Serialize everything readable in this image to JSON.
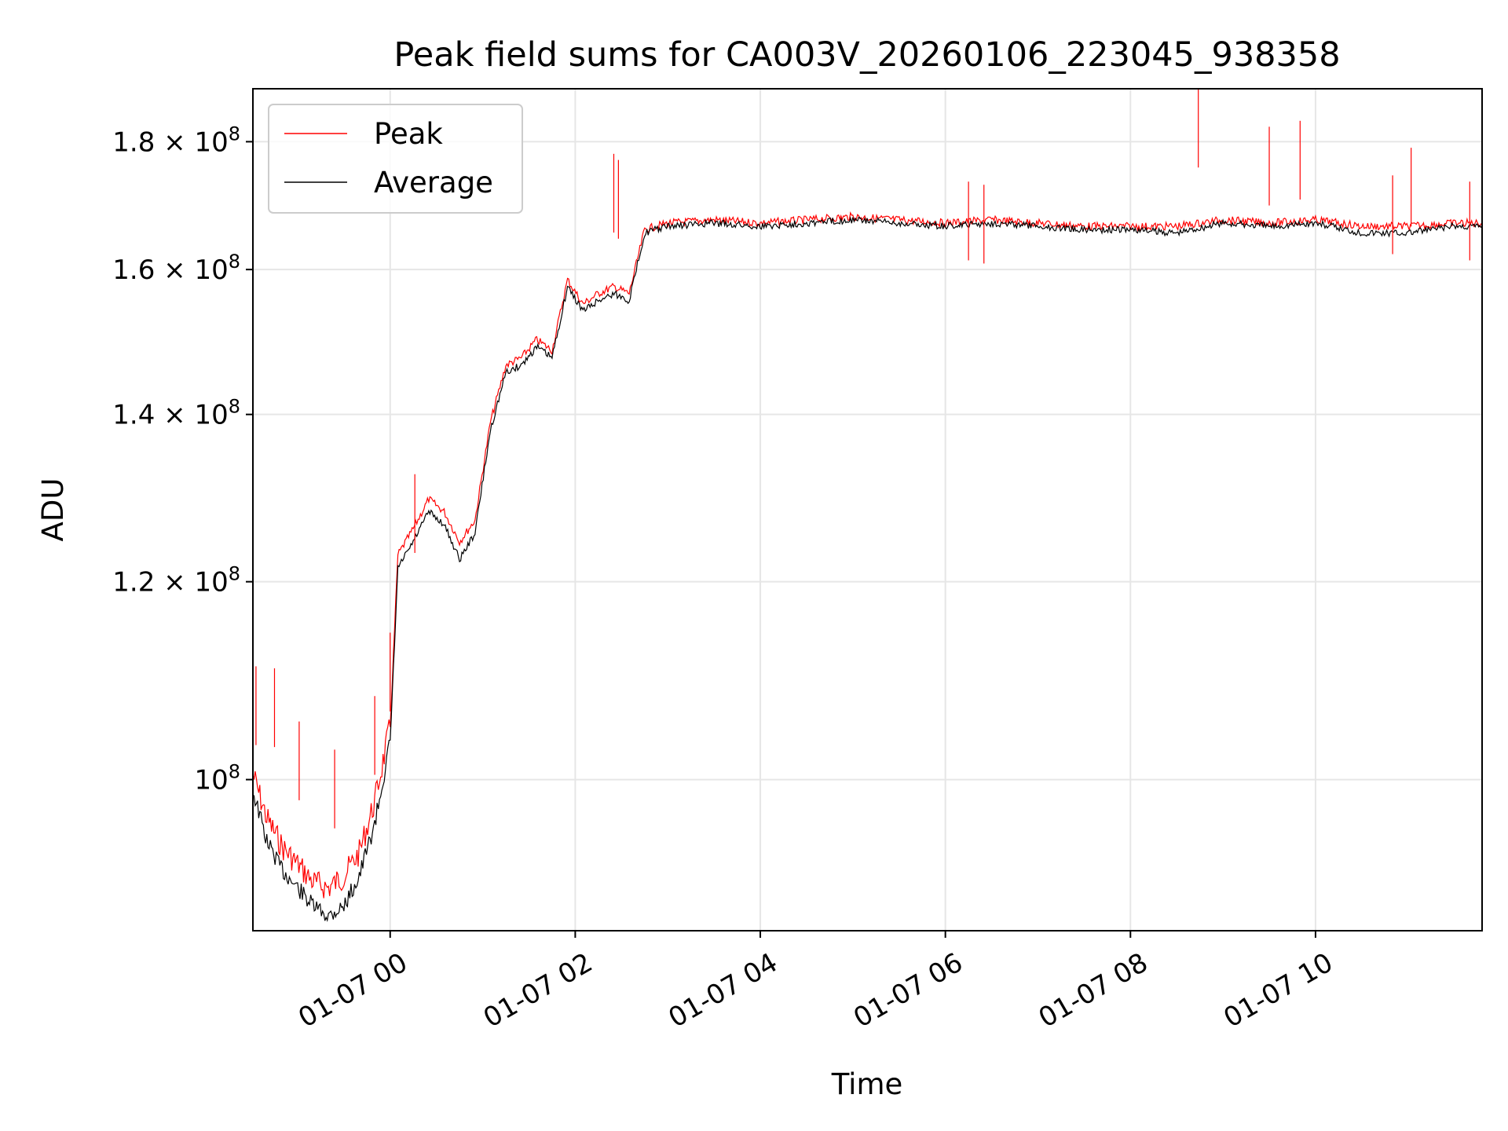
{
  "chart_data": {
    "type": "line",
    "title": "Peak field sums for CA003V_20260106_223045_938358",
    "xlabel": "Time",
    "ylabel": "ADU",
    "y_scale": "log",
    "x_range": [
      "01-06 22:31",
      "01-07 11:48"
    ],
    "ylim": [
      87000000,
      189000000
    ],
    "grid": true,
    "legend_position": "upper left",
    "x_ticks": [
      {
        "time": "01-07 00:00",
        "label": "01-07 00"
      },
      {
        "time": "01-07 02:00",
        "label": "01-07 02"
      },
      {
        "time": "01-07 04:00",
        "label": "01-07 04"
      },
      {
        "time": "01-07 06:00",
        "label": "01-07 06"
      },
      {
        "time": "01-07 08:00",
        "label": "01-07 08"
      },
      {
        "time": "01-07 10:00",
        "label": "01-07 10"
      }
    ],
    "y_ticks": [
      {
        "value": 100000000,
        "label": "10",
        "exp": "8",
        "coef": ""
      },
      {
        "value": 120000000,
        "label": "1.2 × 10",
        "exp": "8",
        "coef": "1.2"
      },
      {
        "value": 140000000,
        "label": "1.4 × 10",
        "exp": "8",
        "coef": "1.4"
      },
      {
        "value": 160000000,
        "label": "1.6 × 10",
        "exp": "8",
        "coef": "1.6"
      },
      {
        "value": 180000000,
        "label": "1.8 × 10",
        "exp": "8",
        "coef": "1.8"
      }
    ],
    "series": [
      {
        "name": "Peak",
        "color": "#ff0000",
        "points": [
          [
            "01-06 22:31",
            100500000
          ],
          [
            "01-06 22:40",
            96500000
          ],
          [
            "01-06 22:50",
            94000000
          ],
          [
            "01-06 23:00",
            92500000
          ],
          [
            "01-06 23:10",
            91000000
          ],
          [
            "01-06 23:20",
            90500000
          ],
          [
            "01-06 23:30",
            91500000
          ],
          [
            "01-06 23:40",
            93500000
          ],
          [
            "01-06 23:50",
            98000000
          ],
          [
            "01-07 00:00",
            105000000
          ],
          [
            "01-07 00:05",
            123000000
          ],
          [
            "01-07 00:15",
            126000000
          ],
          [
            "01-07 00:25",
            129500000
          ],
          [
            "01-07 00:35",
            128000000
          ],
          [
            "01-07 00:45",
            124500000
          ],
          [
            "01-07 00:55",
            127000000
          ],
          [
            "01-07 01:05",
            139000000
          ],
          [
            "01-07 01:15",
            146500000
          ],
          [
            "01-07 01:25",
            147500000
          ],
          [
            "01-07 01:35",
            150000000
          ],
          [
            "01-07 01:45",
            148500000
          ],
          [
            "01-07 01:55",
            158500000
          ],
          [
            "01-07 02:05",
            155000000
          ],
          [
            "01-07 02:15",
            156500000
          ],
          [
            "01-07 02:25",
            157500000
          ],
          [
            "01-07 02:35",
            156500000
          ],
          [
            "01-07 02:45",
            166000000
          ],
          [
            "01-07 03:00",
            167000000
          ],
          [
            "01-07 03:30",
            167500000
          ],
          [
            "01-07 04:00",
            167000000
          ],
          [
            "01-07 04:30",
            167500000
          ],
          [
            "01-07 05:00",
            168000000
          ],
          [
            "01-07 05:30",
            167500000
          ],
          [
            "01-07 06:00",
            167000000
          ],
          [
            "01-07 06:30",
            167500000
          ],
          [
            "01-07 07:00",
            167000000
          ],
          [
            "01-07 07:30",
            166500000
          ],
          [
            "01-07 08:00",
            166500000
          ],
          [
            "01-07 08:30",
            166500000
          ],
          [
            "01-07 09:00",
            167500000
          ],
          [
            "01-07 09:30",
            167000000
          ],
          [
            "01-07 10:00",
            167500000
          ],
          [
            "01-07 10:30",
            166500000
          ],
          [
            "01-07 11:00",
            166500000
          ],
          [
            "01-07 11:30",
            167000000
          ],
          [
            "01-07 11:48",
            167000000
          ]
        ],
        "spikes": [
          [
            "01-06 22:33",
            111000000
          ],
          [
            "01-06 22:45",
            110800000
          ],
          [
            "01-06 23:01",
            105500000
          ],
          [
            "01-06 23:24",
            102800000
          ],
          [
            "01-06 23:50",
            108000000
          ],
          [
            "01-07 00:00",
            114500000
          ],
          [
            "01-07 00:16",
            132500000
          ],
          [
            "01-07 02:25",
            178000000
          ],
          [
            "01-07 02:28",
            177000000
          ],
          [
            "01-07 06:15",
            173500000
          ],
          [
            "01-07 06:25",
            173000000
          ],
          [
            "01-07 08:44",
            189000000
          ],
          [
            "01-07 09:30",
            182500000
          ],
          [
            "01-07 09:50",
            183500000
          ],
          [
            "01-07 10:50",
            174500000
          ],
          [
            "01-07 11:02",
            179000000
          ],
          [
            "01-07 11:40",
            173500000
          ]
        ]
      },
      {
        "name": "Average",
        "color": "#000000",
        "points": [
          [
            "01-06 22:31",
            99000000
          ],
          [
            "01-06 22:40",
            94500000
          ],
          [
            "01-06 22:50",
            92000000
          ],
          [
            "01-06 23:00",
            90500000
          ],
          [
            "01-06 23:10",
            89000000
          ],
          [
            "01-06 23:20",
            88200000
          ],
          [
            "01-06 23:30",
            89000000
          ],
          [
            "01-06 23:40",
            91500000
          ],
          [
            "01-06 23:50",
            96000000
          ],
          [
            "01-07 00:00",
            103500000
          ],
          [
            "01-07 00:05",
            121500000
          ],
          [
            "01-07 00:15",
            124500000
          ],
          [
            "01-07 00:25",
            128000000
          ],
          [
            "01-07 00:35",
            126500000
          ],
          [
            "01-07 00:45",
            122500000
          ],
          [
            "01-07 00:55",
            125500000
          ],
          [
            "01-07 01:05",
            138000000
          ],
          [
            "01-07 01:15",
            145500000
          ],
          [
            "01-07 01:25",
            146500000
          ],
          [
            "01-07 01:35",
            149000000
          ],
          [
            "01-07 01:45",
            147500000
          ],
          [
            "01-07 01:55",
            157500000
          ],
          [
            "01-07 02:05",
            154000000
          ],
          [
            "01-07 02:15",
            155500000
          ],
          [
            "01-07 02:25",
            156500000
          ],
          [
            "01-07 02:35",
            155500000
          ],
          [
            "01-07 02:45",
            165500000
          ],
          [
            "01-07 03:00",
            166500000
          ],
          [
            "01-07 03:30",
            167000000
          ],
          [
            "01-07 04:00",
            166500000
          ],
          [
            "01-07 04:30",
            167000000
          ],
          [
            "01-07 05:00",
            167500000
          ],
          [
            "01-07 05:30",
            167000000
          ],
          [
            "01-07 06:00",
            166500000
          ],
          [
            "01-07 06:30",
            167000000
          ],
          [
            "01-07 07:00",
            166500000
          ],
          [
            "01-07 07:30",
            166000000
          ],
          [
            "01-07 08:00",
            166000000
          ],
          [
            "01-07 08:30",
            165500000
          ],
          [
            "01-07 09:00",
            167000000
          ],
          [
            "01-07 09:30",
            166500000
          ],
          [
            "01-07 10:00",
            167000000
          ],
          [
            "01-07 10:30",
            165500000
          ],
          [
            "01-07 11:00",
            165500000
          ],
          [
            "01-07 11:30",
            166500000
          ],
          [
            "01-07 11:48",
            166500000
          ]
        ]
      }
    ]
  }
}
